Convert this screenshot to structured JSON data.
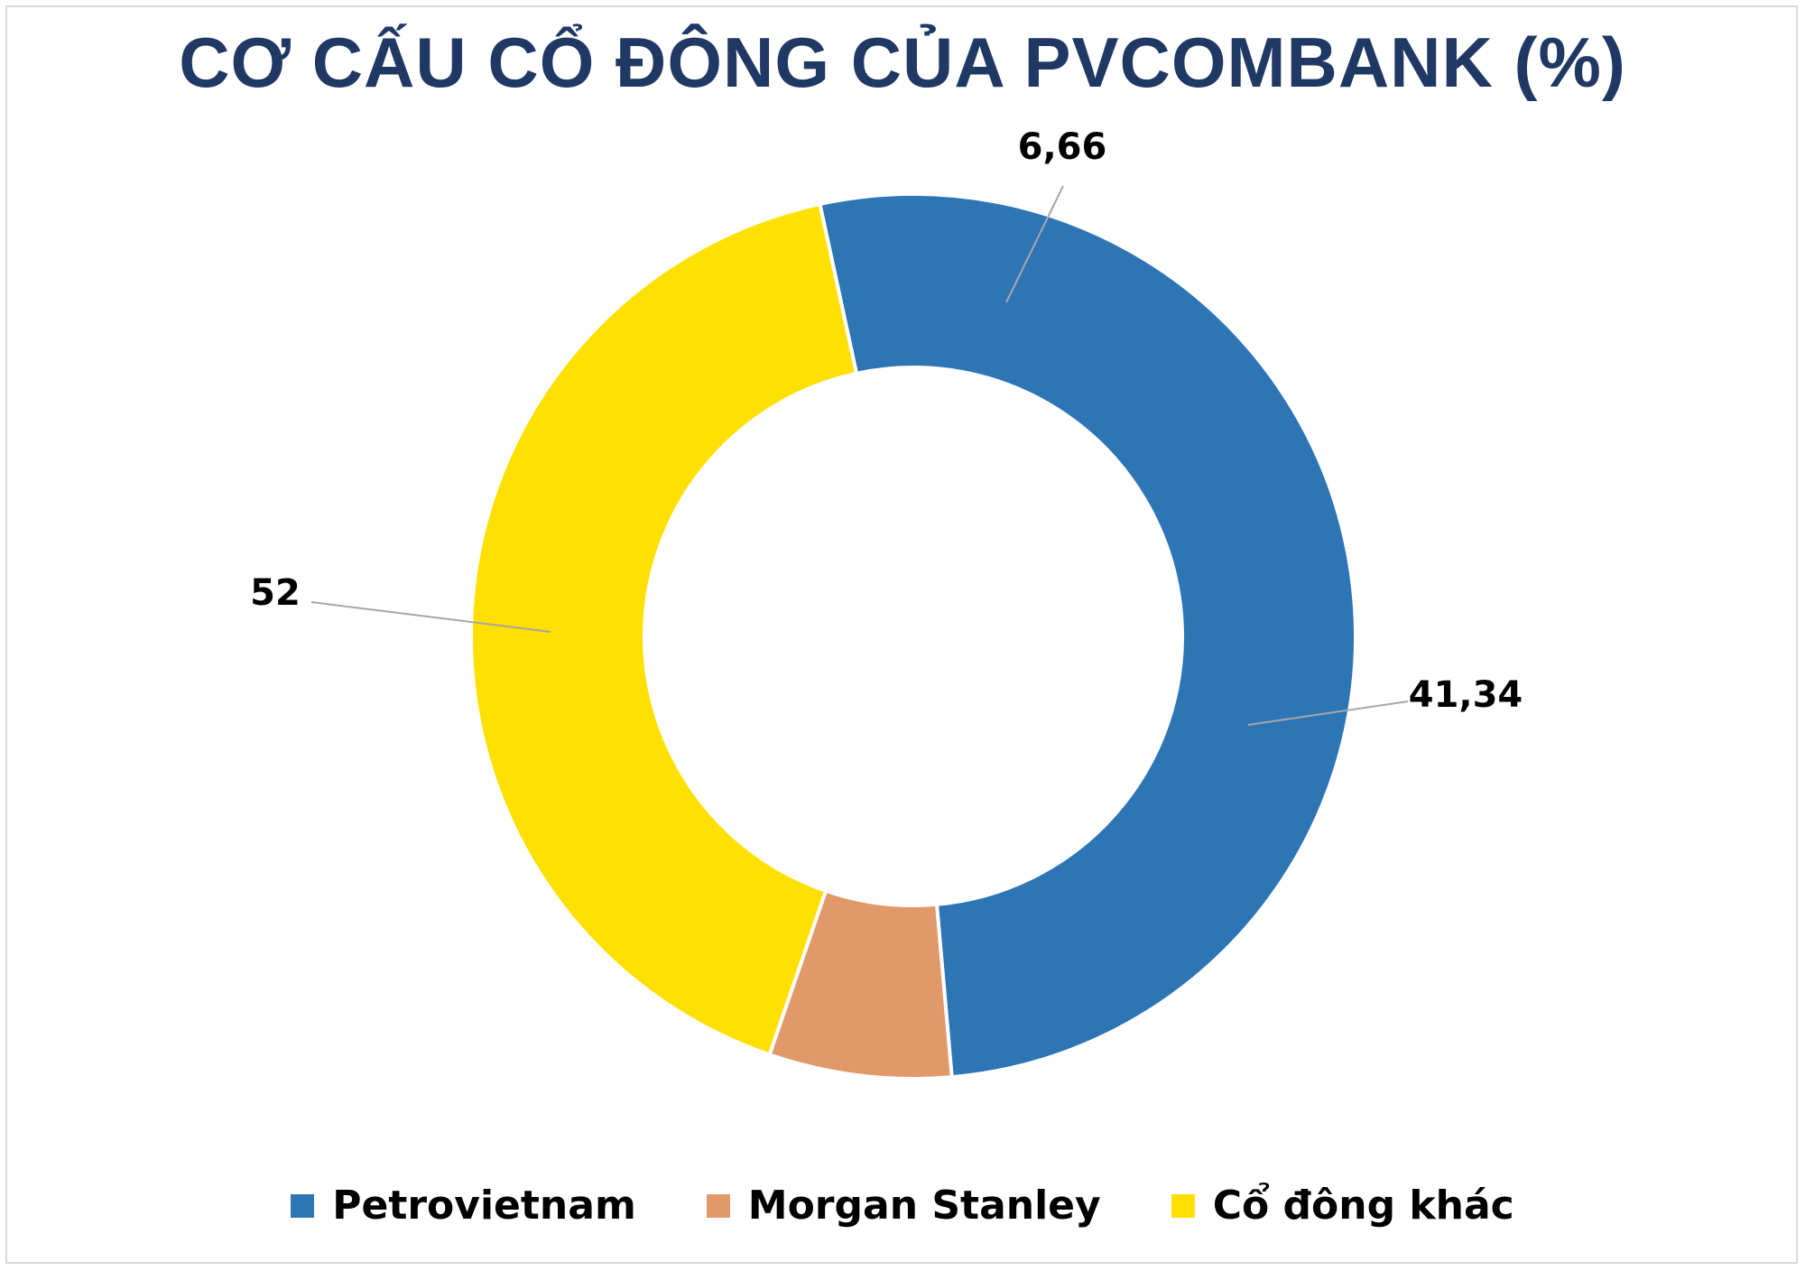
{
  "chart_data": {
    "type": "pie",
    "title": "CƠ CẤU CỔ ĐÔNG CỦA PVCOMBANK (%)",
    "style": "donut",
    "series": [
      {
        "name": "Petrovietnam",
        "value": 52,
        "label": "52",
        "color": "#2e75b6"
      },
      {
        "name": "Morgan Stanley",
        "value": 6.66,
        "label": "6,66",
        "color": "#e2996a"
      },
      {
        "name": "Cổ đông khác",
        "value": 41.34,
        "label": "41,34",
        "color": "#ffe000"
      }
    ],
    "legend_position": "bottom"
  }
}
